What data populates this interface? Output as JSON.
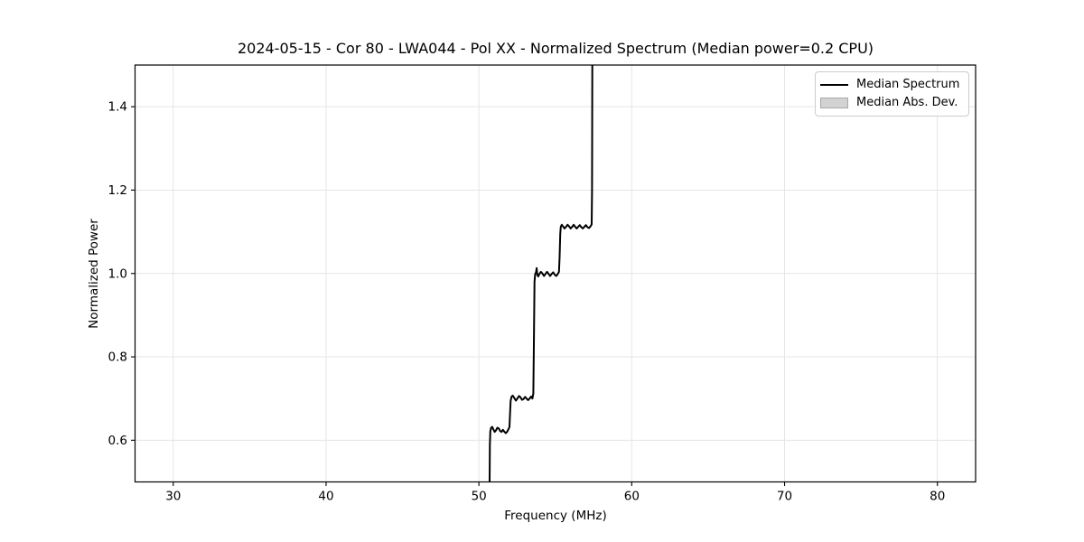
{
  "chart_data": {
    "type": "line",
    "title": "2024-05-15 - Cor 80 - LWA044 - Pol XX - Normalized Spectrum (Median power=0.2 CPU)",
    "xlabel": "Frequency (MHz)",
    "ylabel": "Normalized Power",
    "xlim": [
      27.5,
      82.5
    ],
    "ylim": [
      0.5,
      1.5
    ],
    "xticks": {
      "values": [
        30,
        40,
        50,
        60,
        70,
        80
      ],
      "labels": [
        "30",
        "40",
        "50",
        "60",
        "70",
        "80"
      ]
    },
    "yticks": {
      "values": [
        0.6,
        0.8,
        1.0,
        1.2,
        1.4
      ],
      "labels": [
        "0.6",
        "0.8",
        "1.0",
        "1.2",
        "1.4"
      ]
    },
    "grid": true,
    "legend": {
      "position": "upper right",
      "entries": [
        {
          "label": "Median Spectrum",
          "type": "line",
          "color": "#000000"
        },
        {
          "label": "Median Abs. Dev.",
          "type": "patch",
          "fill": "#d2d2d2",
          "edge": "#a8a8a8"
        }
      ]
    },
    "colors": {
      "line": "#000000",
      "grid": "#e5e5e5",
      "spine": "#000000",
      "text": "#000000"
    },
    "series": [
      {
        "name": "Median Spectrum",
        "color": "#000000",
        "points": [
          [
            50.7,
            0.5
          ],
          [
            50.72,
            0.59
          ],
          [
            50.75,
            0.622
          ],
          [
            50.8,
            0.63
          ],
          [
            50.87,
            0.632
          ],
          [
            50.95,
            0.626
          ],
          [
            51.03,
            0.62
          ],
          [
            51.12,
            0.624
          ],
          [
            51.21,
            0.63
          ],
          [
            51.3,
            0.628
          ],
          [
            51.39,
            0.622
          ],
          [
            51.48,
            0.62
          ],
          [
            51.57,
            0.625
          ],
          [
            51.66,
            0.621
          ],
          [
            51.75,
            0.617
          ],
          [
            51.84,
            0.62
          ],
          [
            51.93,
            0.626
          ],
          [
            52.0,
            0.632
          ],
          [
            52.04,
            0.668
          ],
          [
            52.08,
            0.695
          ],
          [
            52.14,
            0.705
          ],
          [
            52.22,
            0.707
          ],
          [
            52.32,
            0.701
          ],
          [
            52.42,
            0.695
          ],
          [
            52.52,
            0.7
          ],
          [
            52.62,
            0.706
          ],
          [
            52.72,
            0.703
          ],
          [
            52.82,
            0.697
          ],
          [
            52.92,
            0.699
          ],
          [
            53.02,
            0.704
          ],
          [
            53.12,
            0.7
          ],
          [
            53.22,
            0.696
          ],
          [
            53.32,
            0.7
          ],
          [
            53.42,
            0.705
          ],
          [
            53.5,
            0.7
          ],
          [
            53.56,
            0.712
          ],
          [
            53.6,
            0.85
          ],
          [
            53.64,
            0.98
          ],
          [
            53.68,
            0.998
          ],
          [
            53.74,
            1.003
          ],
          [
            53.78,
            1.013
          ],
          [
            53.82,
            0.997
          ],
          [
            53.88,
            0.993
          ],
          [
            53.96,
            0.999
          ],
          [
            54.06,
            1.004
          ],
          [
            54.16,
            1.0
          ],
          [
            54.26,
            0.994
          ],
          [
            54.36,
            0.999
          ],
          [
            54.46,
            1.004
          ],
          [
            54.56,
            0.999
          ],
          [
            54.66,
            0.994
          ],
          [
            54.76,
            0.999
          ],
          [
            54.86,
            1.003
          ],
          [
            54.96,
            0.997
          ],
          [
            55.06,
            0.994
          ],
          [
            55.16,
            0.999
          ],
          [
            55.24,
            1.004
          ],
          [
            55.28,
            1.04
          ],
          [
            55.32,
            1.095
          ],
          [
            55.36,
            1.112
          ],
          [
            55.42,
            1.117
          ],
          [
            55.5,
            1.113
          ],
          [
            55.6,
            1.108
          ],
          [
            55.7,
            1.112
          ],
          [
            55.8,
            1.117
          ],
          [
            55.9,
            1.113
          ],
          [
            56.0,
            1.108
          ],
          [
            56.1,
            1.112
          ],
          [
            56.2,
            1.117
          ],
          [
            56.3,
            1.112
          ],
          [
            56.4,
            1.108
          ],
          [
            56.5,
            1.112
          ],
          [
            56.6,
            1.116
          ],
          [
            56.7,
            1.111
          ],
          [
            56.8,
            1.108
          ],
          [
            56.9,
            1.112
          ],
          [
            57.0,
            1.116
          ],
          [
            57.1,
            1.111
          ],
          [
            57.2,
            1.109
          ],
          [
            57.3,
            1.113
          ],
          [
            57.38,
            1.118
          ],
          [
            57.4,
            1.2
          ],
          [
            57.42,
            1.5
          ]
        ]
      }
    ]
  }
}
